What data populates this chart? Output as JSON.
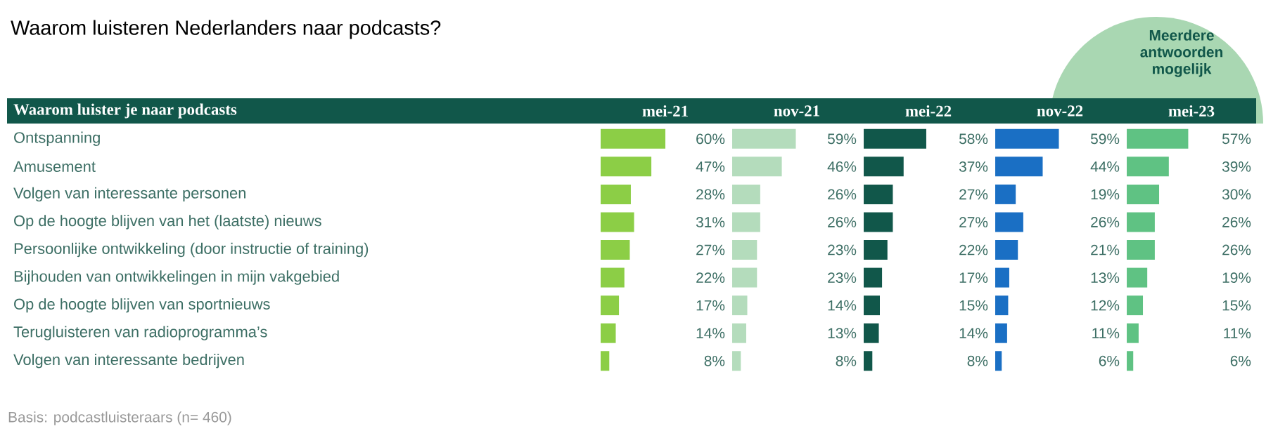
{
  "chart_data": [
    {
      "type": "bar",
      "orientation": "horizontal",
      "tick_labels": "y",
      "title": "Waarom luisteren Nederlanders naar podcasts?",
      "ylabel": "Waarom luister je naar podcasts",
      "annotations": [
        "Meerdere antwoorden mogelijk",
        "Basis: podcastluisteraars (n= 460)"
      ],
      "categories": [
        "Ontspanning",
        "Amusement",
        "Volgen van interessante personen",
        "Op de hoogte blijven van het (laatste) nieuws",
        "Persoonlijke ontwikkeling (door instructie of training)",
        "Bijhouden van ontwikkelingen in mijn vakgebied",
        "Op de hoogte blijven van sportnieuws",
        "Terugluisteren van radioprogramma’s",
        "Volgen van interessante bedrijven"
      ],
      "series": [
        {
          "name": "mei-21",
          "color": "#8cce46",
          "values": [
            60,
            47,
            28,
            31,
            27,
            22,
            17,
            14,
            8
          ],
          "value_labels": [
            "60%",
            "47%",
            "28%",
            "31%",
            "27%",
            "22%",
            "17%",
            "14%",
            "8%"
          ]
        }
      ]
    },
    {
      "type": "bar",
      "orientation": "horizontal",
      "tick_labels": false,
      "categories": [
        null,
        null,
        null,
        null,
        null,
        null,
        null,
        null,
        null
      ],
      "series": [
        {
          "name": "nov-21",
          "color": "#b4dcbc",
          "values": [
            59,
            46,
            26,
            26,
            23,
            23,
            14,
            13,
            8
          ],
          "value_labels": [
            "59%",
            "46%",
            "26%",
            "26%",
            "23%",
            "23%",
            "14%",
            "13%",
            "8%"
          ]
        }
      ]
    },
    {
      "type": "bar",
      "orientation": "horizontal",
      "tick_labels": false,
      "categories": [
        null,
        null,
        null,
        null,
        null,
        null,
        null,
        null,
        null
      ],
      "series": [
        {
          "name": "mei-22",
          "color": "#11574a",
          "values": [
            58,
            37,
            27,
            27,
            22,
            17,
            15,
            14,
            8
          ],
          "value_labels": [
            "58%",
            "37%",
            "27%",
            "27%",
            "22%",
            "17%",
            "15%",
            "14%",
            "8%"
          ]
        }
      ]
    },
    {
      "type": "bar",
      "orientation": "horizontal",
      "tick_labels": false,
      "categories": [
        null,
        null,
        null,
        null,
        null,
        null,
        null,
        null,
        null
      ],
      "series": [
        {
          "name": "nov-22",
          "color": "#1a6fc4",
          "values": [
            59,
            44,
            19,
            26,
            21,
            13,
            12,
            11,
            6
          ],
          "value_labels": [
            "59%",
            "44%",
            "19%",
            "26%",
            "21%",
            "13%",
            "12%",
            "11%",
            "6%"
          ]
        }
      ]
    },
    {
      "type": "bar",
      "orientation": "horizontal",
      "tick_labels": false,
      "categories": [
        null,
        null,
        null,
        null,
        null,
        null,
        null,
        null,
        null
      ],
      "series": [
        {
          "name": "mei-23",
          "color": "#5fc283",
          "values": [
            57,
            39,
            30,
            26,
            26,
            19,
            15,
            11,
            6
          ],
          "value_labels": [
            "57%",
            "39%",
            "30%",
            "26%",
            "26%",
            "19%",
            "15%",
            "11%",
            "6%"
          ]
        }
      ]
    }
  ]
}
